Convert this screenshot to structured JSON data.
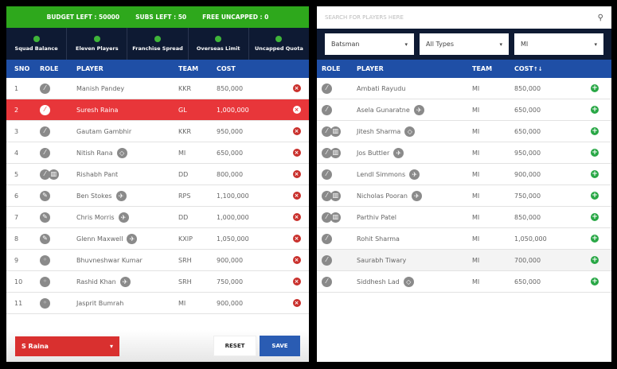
{
  "squad": {
    "budget": "BUDGET LEFT : 50000",
    "subs": "SUBS LEFT : 50",
    "uncapped": "FREE UNCAPPED : 0",
    "checks": [
      "Squad Balance",
      "Eleven Players",
      "Franchise Spread",
      "Overseas Limit",
      "Uncapped Quota"
    ],
    "headers": {
      "sno": "SNO",
      "role": "ROLE",
      "player": "PLAYER",
      "team": "TEAM",
      "cost": "COST"
    },
    "rows": [
      {
        "sno": "1",
        "role": "batsman",
        "player": "Manish Pandey",
        "badge": "",
        "team": "KKR",
        "cost": "850,000"
      },
      {
        "sno": "2",
        "role": "batsman",
        "player": "Suresh Raina",
        "badge": "",
        "team": "GL",
        "cost": "1,000,000",
        "selected": true
      },
      {
        "sno": "3",
        "role": "batsman",
        "player": "Gautam Gambhir",
        "badge": "",
        "team": "KKR",
        "cost": "950,000"
      },
      {
        "sno": "4",
        "role": "batsman",
        "player": "Nitish Rana",
        "badge": "uncapped",
        "team": "MI",
        "cost": "650,000"
      },
      {
        "sno": "5",
        "role": "wicketkeeper",
        "player": "Rishabh Pant",
        "badge": "",
        "team": "DD",
        "cost": "800,000"
      },
      {
        "sno": "6",
        "role": "allrounder",
        "player": "Ben Stokes",
        "badge": "overseas",
        "team": "RPS",
        "cost": "1,100,000"
      },
      {
        "sno": "7",
        "role": "allrounder",
        "player": "Chris Morris",
        "badge": "overseas",
        "team": "DD",
        "cost": "1,000,000"
      },
      {
        "sno": "8",
        "role": "allrounder",
        "player": "Glenn Maxwell",
        "badge": "overseas",
        "team": "KXIP",
        "cost": "1,050,000"
      },
      {
        "sno": "9",
        "role": "bowler",
        "player": "Bhuvneshwar Kumar",
        "badge": "",
        "team": "SRH",
        "cost": "900,000"
      },
      {
        "sno": "10",
        "role": "bowler",
        "player": "Rashid Khan",
        "badge": "overseas",
        "team": "SRH",
        "cost": "750,000"
      },
      {
        "sno": "11",
        "role": "bowler",
        "player": "Jasprit Bumrah",
        "badge": "",
        "team": "MI",
        "cost": "900,000"
      }
    ],
    "captain": "S Raina",
    "reset": "RESET",
    "save": "SAVE"
  },
  "pool": {
    "search_placeholder": "SEARCH FOR PLAYERS HERE",
    "filters": [
      "Batsman",
      "All Types",
      "MI"
    ],
    "headers": {
      "role": "ROLE",
      "player": "PLAYER",
      "team": "TEAM",
      "cost": "COST",
      "sort": "↑↓"
    },
    "rows": [
      {
        "role": "batsman",
        "player": "Ambati Rayudu",
        "badge": "",
        "team": "MI",
        "cost": "850,000"
      },
      {
        "role": "batsman",
        "player": "Asela Gunaratne",
        "badge": "overseas",
        "team": "MI",
        "cost": "650,000"
      },
      {
        "role": "wicketkeeper",
        "player": "Jitesh Sharma",
        "badge": "uncapped",
        "team": "MI",
        "cost": "650,000"
      },
      {
        "role": "wicketkeeper",
        "player": "Jos Buttler",
        "badge": "overseas",
        "team": "MI",
        "cost": "950,000"
      },
      {
        "role": "batsman",
        "player": "Lendl Simmons",
        "badge": "overseas",
        "team": "MI",
        "cost": "900,000"
      },
      {
        "role": "wicketkeeper",
        "player": "Nicholas Pooran",
        "badge": "overseas",
        "team": "MI",
        "cost": "750,000"
      },
      {
        "role": "wicketkeeper",
        "player": "Parthiv Patel",
        "badge": "",
        "team": "MI",
        "cost": "850,000"
      },
      {
        "role": "batsman",
        "player": "Rohit Sharma",
        "badge": "",
        "team": "MI",
        "cost": "1,050,000"
      },
      {
        "role": "batsman",
        "player": "Saurabh Tiwary",
        "badge": "",
        "team": "MI",
        "cost": "700,000",
        "hover": true
      },
      {
        "role": "batsman",
        "player": "Siddhesh Lad",
        "badge": "uncapped",
        "team": "MI",
        "cost": "650,000"
      }
    ]
  },
  "colors": {
    "green": "#2ea81c",
    "navy": "#0e1a33",
    "blue": "#1f4fa6",
    "red": "#e8363a"
  }
}
